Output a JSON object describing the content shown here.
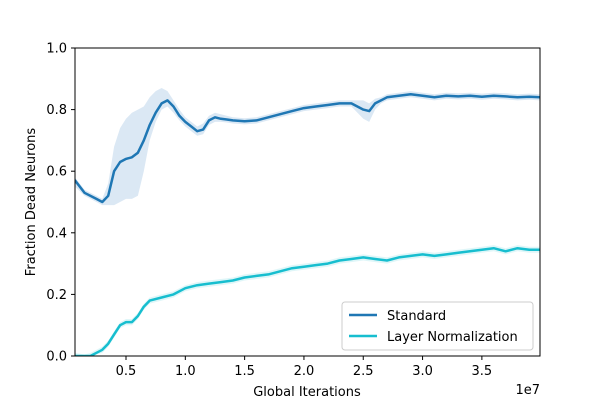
{
  "chart_data": {
    "type": "line",
    "xlabel": "Global Iterations",
    "ylabel": "Fraction Dead Neurons",
    "x_offset_label": "1e7",
    "xlim": [
      0.07,
      3.99
    ],
    "ylim": [
      0.0,
      1.0
    ],
    "xticks": [
      0.5,
      1.0,
      1.5,
      2.0,
      2.5,
      3.0,
      3.5
    ],
    "xtick_labels": [
      "0.5",
      "1.0",
      "1.5",
      "2.0",
      "2.5",
      "3.0",
      "3.5"
    ],
    "yticks": [
      0.0,
      0.2,
      0.4,
      0.6,
      0.8,
      1.0
    ],
    "ytick_labels": [
      "0.0",
      "0.2",
      "0.4",
      "0.6",
      "0.8",
      "1.0"
    ],
    "grid": false,
    "legend_position": "lower-right",
    "series": [
      {
        "name": "Standard",
        "color": "#1f77b4",
        "band_color": "#cfe0f0",
        "x": [
          0.07,
          0.15,
          0.25,
          0.3,
          0.35,
          0.4,
          0.45,
          0.5,
          0.55,
          0.6,
          0.65,
          0.7,
          0.75,
          0.8,
          0.85,
          0.9,
          0.95,
          1.0,
          1.05,
          1.1,
          1.15,
          1.2,
          1.25,
          1.3,
          1.35,
          1.4,
          1.5,
          1.6,
          1.7,
          1.8,
          1.9,
          2.0,
          2.1,
          2.2,
          2.3,
          2.4,
          2.5,
          2.55,
          2.6,
          2.65,
          2.7,
          2.8,
          2.9,
          3.0,
          3.1,
          3.2,
          3.3,
          3.4,
          3.5,
          3.6,
          3.7,
          3.8,
          3.9,
          3.99
        ],
        "y": [
          0.57,
          0.53,
          0.51,
          0.5,
          0.52,
          0.6,
          0.63,
          0.64,
          0.645,
          0.66,
          0.7,
          0.75,
          0.79,
          0.82,
          0.83,
          0.81,
          0.78,
          0.76,
          0.745,
          0.73,
          0.735,
          0.765,
          0.775,
          0.77,
          0.768,
          0.765,
          0.762,
          0.765,
          0.775,
          0.785,
          0.795,
          0.805,
          0.81,
          0.815,
          0.82,
          0.82,
          0.8,
          0.795,
          0.82,
          0.83,
          0.84,
          0.845,
          0.85,
          0.845,
          0.84,
          0.845,
          0.843,
          0.845,
          0.842,
          0.845,
          0.843,
          0.84,
          0.842,
          0.84
        ],
        "lower": [
          0.55,
          0.52,
          0.5,
          0.49,
          0.49,
          0.49,
          0.5,
          0.51,
          0.51,
          0.52,
          0.6,
          0.7,
          0.76,
          0.8,
          0.81,
          0.79,
          0.765,
          0.745,
          0.73,
          0.715,
          0.72,
          0.75,
          0.76,
          0.76,
          0.758,
          0.755,
          0.752,
          0.755,
          0.765,
          0.775,
          0.785,
          0.795,
          0.8,
          0.805,
          0.81,
          0.81,
          0.77,
          0.76,
          0.8,
          0.82,
          0.83,
          0.835,
          0.84,
          0.835,
          0.83,
          0.835,
          0.833,
          0.835,
          0.832,
          0.835,
          0.833,
          0.83,
          0.832,
          0.83
        ],
        "upper": [
          0.58,
          0.54,
          0.52,
          0.51,
          0.56,
          0.68,
          0.74,
          0.77,
          0.79,
          0.8,
          0.81,
          0.84,
          0.86,
          0.87,
          0.86,
          0.83,
          0.8,
          0.775,
          0.76,
          0.745,
          0.755,
          0.78,
          0.79,
          0.785,
          0.78,
          0.775,
          0.772,
          0.775,
          0.785,
          0.795,
          0.805,
          0.815,
          0.82,
          0.825,
          0.83,
          0.83,
          0.83,
          0.82,
          0.835,
          0.84,
          0.85,
          0.855,
          0.86,
          0.855,
          0.85,
          0.855,
          0.853,
          0.855,
          0.852,
          0.855,
          0.853,
          0.85,
          0.852,
          0.85
        ]
      },
      {
        "name": "Layer Normalization",
        "color": "#17becf",
        "band_color": "#d4f3f6",
        "x": [
          0.07,
          0.15,
          0.2,
          0.3,
          0.35,
          0.4,
          0.45,
          0.5,
          0.55,
          0.6,
          0.65,
          0.7,
          0.8,
          0.9,
          1.0,
          1.1,
          1.2,
          1.3,
          1.4,
          1.5,
          1.6,
          1.7,
          1.8,
          1.9,
          2.0,
          2.1,
          2.2,
          2.3,
          2.4,
          2.5,
          2.6,
          2.7,
          2.8,
          2.9,
          3.0,
          3.1,
          3.2,
          3.3,
          3.4,
          3.5,
          3.6,
          3.7,
          3.8,
          3.9,
          3.99
        ],
        "y": [
          0.0,
          0.0,
          0.0,
          0.02,
          0.04,
          0.07,
          0.1,
          0.11,
          0.11,
          0.13,
          0.16,
          0.18,
          0.19,
          0.2,
          0.22,
          0.23,
          0.235,
          0.24,
          0.245,
          0.255,
          0.26,
          0.265,
          0.275,
          0.285,
          0.29,
          0.295,
          0.3,
          0.31,
          0.315,
          0.32,
          0.315,
          0.31,
          0.32,
          0.325,
          0.33,
          0.325,
          0.33,
          0.335,
          0.34,
          0.345,
          0.35,
          0.34,
          0.35,
          0.345,
          0.345
        ],
        "lower": [
          0.0,
          0.0,
          0.0,
          0.01,
          0.03,
          0.06,
          0.09,
          0.1,
          0.1,
          0.12,
          0.15,
          0.17,
          0.18,
          0.19,
          0.21,
          0.22,
          0.225,
          0.23,
          0.235,
          0.245,
          0.25,
          0.255,
          0.265,
          0.275,
          0.28,
          0.285,
          0.29,
          0.3,
          0.305,
          0.31,
          0.305,
          0.3,
          0.31,
          0.315,
          0.32,
          0.315,
          0.32,
          0.325,
          0.33,
          0.335,
          0.34,
          0.33,
          0.34,
          0.335,
          0.335
        ],
        "upper": [
          0.01,
          0.005,
          0.01,
          0.03,
          0.05,
          0.08,
          0.11,
          0.12,
          0.12,
          0.14,
          0.17,
          0.19,
          0.2,
          0.21,
          0.23,
          0.24,
          0.245,
          0.25,
          0.255,
          0.265,
          0.27,
          0.275,
          0.285,
          0.295,
          0.3,
          0.305,
          0.31,
          0.32,
          0.325,
          0.33,
          0.325,
          0.32,
          0.33,
          0.335,
          0.34,
          0.335,
          0.34,
          0.345,
          0.35,
          0.355,
          0.36,
          0.35,
          0.36,
          0.355,
          0.355
        ]
      }
    ]
  }
}
